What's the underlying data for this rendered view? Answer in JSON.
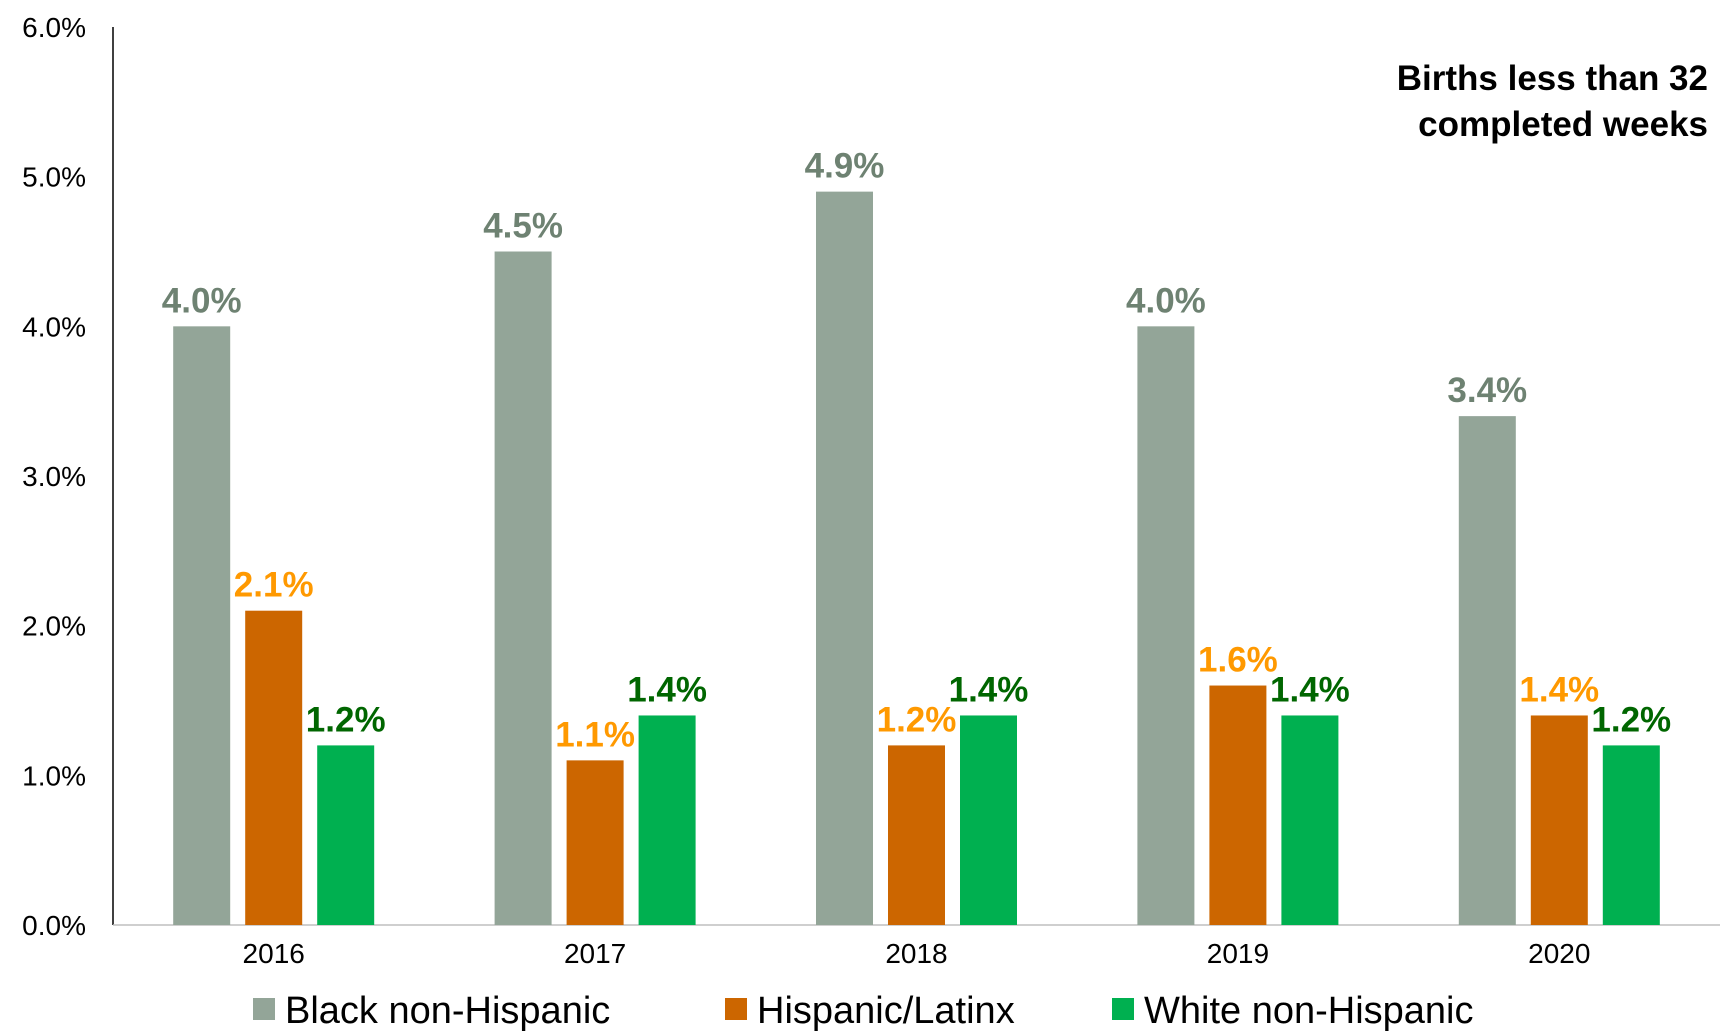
{
  "chart_data": {
    "type": "bar",
    "title_lines": [
      "Births less than 32",
      "completed weeks"
    ],
    "categories": [
      "2016",
      "2017",
      "2018",
      "2019",
      "2020"
    ],
    "ylim": [
      0,
      6
    ],
    "yticks": [
      "0.0%",
      "1.0%",
      "2.0%",
      "3.0%",
      "4.0%",
      "5.0%",
      "6.0%"
    ],
    "grid": false,
    "legend_position": "bottom",
    "series": [
      {
        "name": "Black non-Hispanic",
        "color": "#93A598",
        "label_color": "#6E8272",
        "values": [
          4.0,
          4.5,
          4.9,
          4.0,
          3.4
        ],
        "labels": [
          "4.0%",
          "4.5%",
          "4.9%",
          "4.0%",
          "3.4%"
        ]
      },
      {
        "name": "Hispanic/Latinx",
        "color": "#CC6600",
        "label_color": "#FF9900",
        "values": [
          2.1,
          1.1,
          1.2,
          1.6,
          1.4
        ],
        "labels": [
          "2.1%",
          "1.1%",
          "1.2%",
          "1.6%",
          "1.4%"
        ]
      },
      {
        "name": "White non-Hispanic",
        "color": "#00B050",
        "label_color": "#006600",
        "values": [
          1.2,
          1.4,
          1.4,
          1.4,
          1.2
        ],
        "labels": [
          "1.2%",
          "1.4%",
          "1.4%",
          "1.4%",
          "1.2%"
        ]
      }
    ]
  }
}
